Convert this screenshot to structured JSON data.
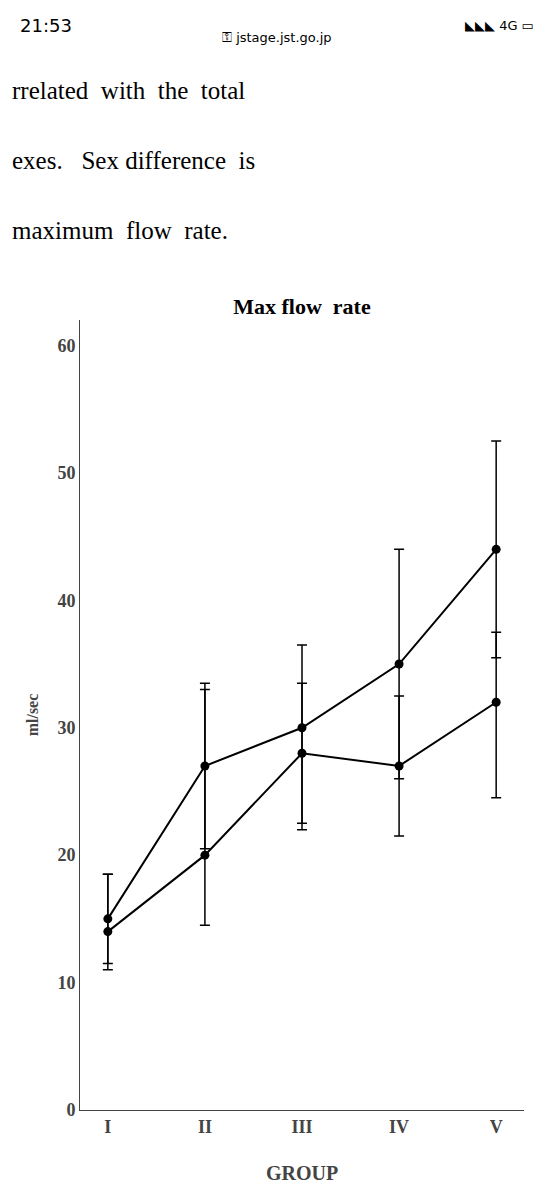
{
  "chart_data": {
    "type": "line",
    "title": "Max flow  rate",
    "xlabel": "GROUP",
    "ylabel": "ml/sec",
    "categories": [
      "I",
      "II",
      "III",
      "IV",
      "V"
    ],
    "series": [
      {
        "color": "#000000",
        "marker": "circle",
        "line_style": "solid",
        "values": [
          15.0,
          27.0,
          30.0,
          35.0,
          44.0
        ],
        "error_upper": [
          3.5,
          6.5,
          6.5,
          9.0,
          8.5
        ],
        "error_lower": [
          3.5,
          6.5,
          7.5,
          9.0,
          8.5
        ]
      },
      {
        "color": "#000000",
        "marker": "circle",
        "line_style": "solid",
        "values": [
          14.0,
          20.0,
          28.0,
          27.0,
          32.0
        ],
        "error_upper": [
          4.5,
          13.0,
          5.5,
          5.5,
          5.5
        ],
        "error_lower": [
          3.0,
          5.5,
          6.0,
          5.5,
          7.5
        ]
      }
    ],
    "ylim": [
      0,
      62
    ],
    "yticks": [
      0,
      10,
      20,
      30,
      40,
      50,
      60
    ],
    "grid": false,
    "annotations": [
      "21:53",
      "⚿ jstage.jst.go.jp",
      "◣◣◣ 4G ▭",
      "rrelated  with  the  total",
      "exes.   Sex difference  is",
      "maximum  flow  rate."
    ]
  }
}
